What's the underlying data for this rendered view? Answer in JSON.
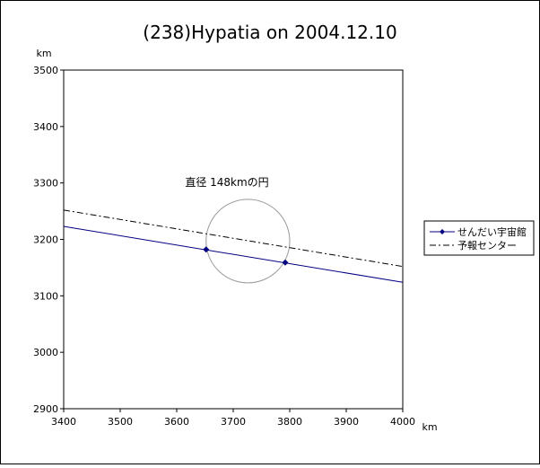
{
  "chart_data": {
    "type": "line",
    "title": "(238)Hypatia on 2004.12.10",
    "xlabel": "km",
    "ylabel": "km",
    "xlim": [
      3400,
      4000
    ],
    "ylim": [
      2900,
      3500
    ],
    "x_ticks": [
      "3400",
      "3500",
      "3600",
      "3700",
      "3800",
      "3900",
      "4000"
    ],
    "y_ticks": [
      "2900",
      "3000",
      "3100",
      "3200",
      "3300",
      "3400",
      "3500"
    ],
    "grid": false,
    "legend_position": "right",
    "series": [
      {
        "name": "せんだい宇宙館",
        "style": "solid",
        "color": "#000080",
        "marker": "diamond",
        "x": [
          3400,
          4000
        ],
        "y": [
          3223,
          3124
        ],
        "marker_points": [
          [
            3652,
            3182
          ],
          [
            3792,
            3159
          ]
        ]
      },
      {
        "name": "予報センター",
        "style": "dash-dot",
        "color": "#000000",
        "x": [
          3400,
          4000
        ],
        "y": [
          3252,
          3152
        ]
      }
    ],
    "circle": {
      "label": "直径 148kmの円",
      "center": [
        3726,
        3197
      ],
      "diameter": 148,
      "color": "#999999"
    }
  }
}
